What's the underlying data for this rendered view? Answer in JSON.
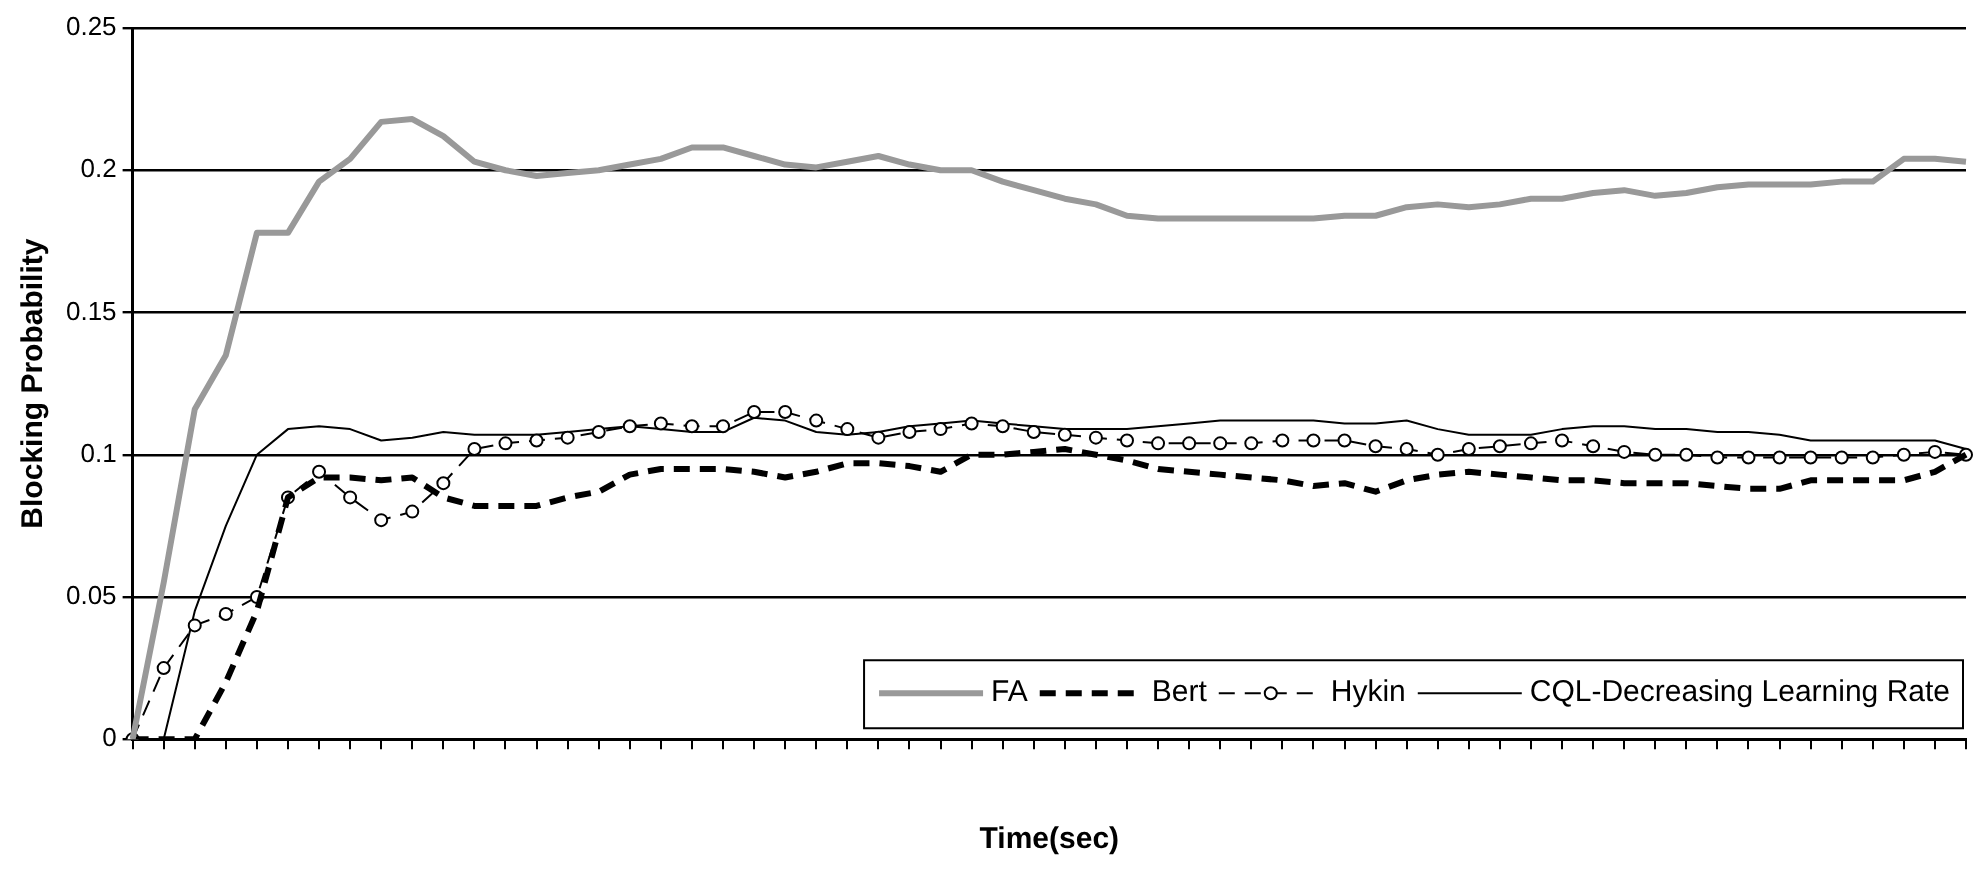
{
  "chart_data": {
    "type": "line",
    "xlabel": "Time(sec)",
    "ylabel": "Blocking Probability",
    "categories": [
      null,
      null,
      null,
      null,
      null,
      null,
      null,
      null,
      null,
      null,
      null,
      null,
      null,
      null,
      null,
      null,
      null,
      null,
      null,
      null,
      null,
      null,
      null,
      null,
      null,
      null,
      null,
      null,
      null,
      null,
      null,
      null,
      null,
      null,
      null,
      null,
      null,
      null,
      null,
      null,
      null,
      null,
      null,
      null,
      null,
      null,
      null,
      null,
      null,
      null,
      null,
      null,
      null,
      null,
      null,
      null,
      null,
      null,
      null,
      null
    ],
    "ylim": [
      0,
      0.25
    ],
    "yticks": [
      0,
      0.05,
      0.1,
      0.15,
      0.2,
      0.25
    ],
    "grid": "y",
    "legend": "bottom right",
    "marker": "none",
    "series": [
      {
        "name": "FA",
        "color": "#999999",
        "line_style": "solid",
        "values": [
          0,
          0.055,
          0.116,
          0.135,
          0.178,
          0.178,
          0.196,
          0.204,
          0.217,
          0.218,
          0.212,
          0.203,
          0.2,
          0.198,
          0.199,
          0.2,
          0.202,
          0.204,
          0.208,
          0.208,
          0.205,
          0.202,
          0.201,
          0.203,
          0.205,
          0.202,
          0.2,
          0.2,
          0.196,
          0.193,
          0.19,
          0.188,
          0.184,
          0.183,
          0.183,
          0.183,
          0.183,
          0.183,
          0.183,
          0.184,
          0.184,
          0.187,
          0.188,
          0.187,
          0.188,
          0.19,
          0.19,
          0.192,
          0.193,
          0.191,
          0.192,
          0.194,
          0.195,
          0.195,
          0.195,
          0.196,
          0.196,
          0.204,
          0.204,
          0.203
        ]
      },
      {
        "name": "Bert",
        "color": "#000000",
        "line_style": "dashed",
        "values": [
          0,
          0,
          0,
          0.02,
          0.045,
          0.085,
          0.092,
          0.092,
          0.091,
          0.092,
          0.085,
          0.082,
          0.082,
          0.082,
          0.085,
          0.087,
          0.093,
          0.095,
          0.095,
          0.095,
          0.094,
          0.092,
          0.094,
          0.097,
          0.097,
          0.096,
          0.094,
          0.1,
          0.1,
          0.101,
          0.102,
          0.1,
          0.098,
          0.095,
          0.094,
          0.093,
          0.092,
          0.091,
          0.089,
          0.09,
          0.087,
          0.091,
          0.093,
          0.094,
          0.093,
          0.092,
          0.091,
          0.091,
          0.09,
          0.09,
          0.09,
          0.089,
          0.088,
          0.088,
          0.091,
          0.091,
          0.091,
          0.091,
          0.094,
          0.1
        ]
      },
      {
        "name": "Hykin",
        "color": "#000000",
        "line_style": "dashed",
        "marker": "circle",
        "values": [
          0,
          0.025,
          0.04,
          0.044,
          0.05,
          0.085,
          0.094,
          0.085,
          0.077,
          0.08,
          0.09,
          0.102,
          0.104,
          0.105,
          0.106,
          0.108,
          0.11,
          0.111,
          0.11,
          0.11,
          0.115,
          0.115,
          0.112,
          0.109,
          0.106,
          0.108,
          0.109,
          0.111,
          0.11,
          0.108,
          0.107,
          0.106,
          0.105,
          0.104,
          0.104,
          0.104,
          0.104,
          0.105,
          0.105,
          0.105,
          0.103,
          0.102,
          0.1,
          0.102,
          0.103,
          0.104,
          0.105,
          0.103,
          0.101,
          0.1,
          0.1,
          0.099,
          0.099,
          0.099,
          0.099,
          0.099,
          0.099,
          0.1,
          0.101,
          0.1
        ]
      },
      {
        "name": "CQL-Decreasing Learning Rate",
        "color": "#000000",
        "line_style": "solid",
        "values": [
          0,
          0,
          0.045,
          0.075,
          0.1,
          0.109,
          0.11,
          0.109,
          0.105,
          0.106,
          0.108,
          0.107,
          0.107,
          0.107,
          0.108,
          0.109,
          0.11,
          0.109,
          0.108,
          0.108,
          0.113,
          0.112,
          0.108,
          0.107,
          0.108,
          0.11,
          0.111,
          0.112,
          0.111,
          0.11,
          0.109,
          0.109,
          0.109,
          0.11,
          0.111,
          0.112,
          0.112,
          0.112,
          0.112,
          0.111,
          0.111,
          0.112,
          0.109,
          0.107,
          0.107,
          0.107,
          0.109,
          0.11,
          0.11,
          0.109,
          0.109,
          0.108,
          0.108,
          0.107,
          0.105,
          0.105,
          0.105,
          0.105,
          0.105,
          0.102
        ]
      }
    ]
  }
}
